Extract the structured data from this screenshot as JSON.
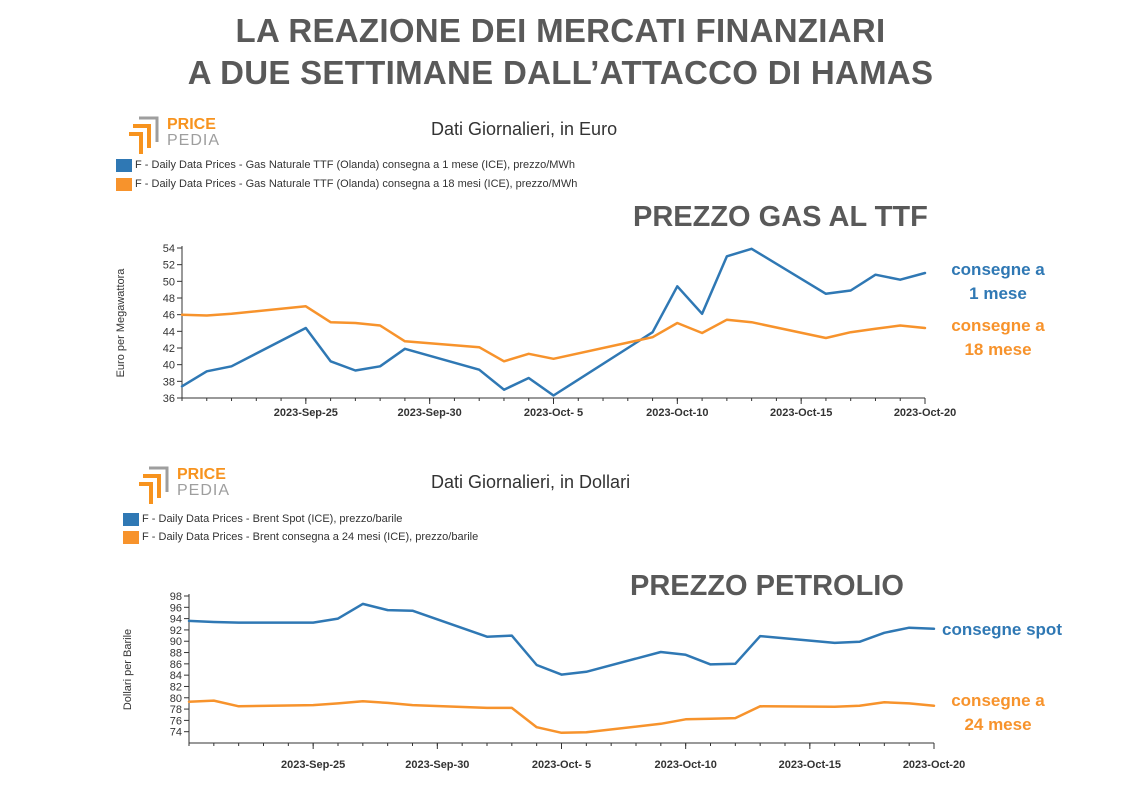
{
  "title_line1": "LA REAZIONE DEI MERCATI FINANZIARI",
  "title_line2": "A DUE SETTIMANE DALL’ATTACCO DI HAMAS",
  "logo": {
    "text_top": "PRICE",
    "text_bottom": "PEDIA",
    "color_orange": "#f7931e",
    "color_gray": "#9e9e9e"
  },
  "colors": {
    "blue": "#2f78b4",
    "orange": "#f7932c",
    "axis": "#333333"
  },
  "chart_data": [
    {
      "type": "line",
      "subtitle": "Dati Giornalieri, in Euro",
      "overlay_title": "PREZZO GAS AL TTF",
      "ylabel": "Euro per Megawattora",
      "ylim": [
        36,
        54
      ],
      "yticks": [
        36,
        38,
        40,
        42,
        44,
        46,
        48,
        50,
        52,
        54
      ],
      "xlim": [
        "2023-Sep-20",
        "2023-Oct-20"
      ],
      "xticks": [
        "2023-Sep-25",
        "2023-Sep-30",
        "2023-Oct- 5",
        "2023-Oct-10",
        "2023-Oct-15",
        "2023-Oct-20"
      ],
      "x_start": "2023-Sep-20",
      "series": [
        {
          "name": "F - Daily Data Prices - Gas Naturale TTF (Olanda) consegna a 1 mese (ICE), prezzo/MWh",
          "annotation": [
            "consegne a",
            "1 mese"
          ],
          "color": "#2f78b4",
          "x": [
            0,
            1,
            2,
            5,
            6,
            7,
            8,
            9,
            12,
            13,
            14,
            15,
            19,
            20,
            21,
            22,
            23,
            26,
            27,
            28,
            29,
            30
          ],
          "values": [
            37.4,
            39.2,
            39.8,
            44.4,
            40.4,
            39.3,
            39.8,
            41.9,
            39.4,
            37.0,
            38.4,
            36.3,
            43.9,
            49.4,
            46.1,
            53.0,
            53.9,
            48.5,
            48.9,
            50.8,
            50.2,
            51.0
          ]
        },
        {
          "name": "F - Daily Data Prices - Gas Naturale TTF (Olanda) consegna a 18 mesi (ICE), prezzo/MWh",
          "annotation": [
            "consegne a",
            "18 mese"
          ],
          "color": "#f7932c",
          "x": [
            0,
            1,
            2,
            5,
            6,
            7,
            8,
            9,
            12,
            13,
            14,
            15,
            19,
            20,
            21,
            22,
            23,
            26,
            27,
            28,
            29,
            30
          ],
          "values": [
            46.0,
            45.9,
            46.1,
            47.0,
            45.1,
            45.0,
            44.7,
            42.8,
            42.1,
            40.4,
            41.3,
            40.7,
            43.3,
            45.0,
            43.8,
            45.4,
            45.1,
            43.2,
            43.9,
            44.3,
            44.7,
            44.4
          ]
        }
      ]
    },
    {
      "type": "line",
      "subtitle": "Dati Giornalieri, in Dollari",
      "overlay_title": "PREZZO PETROLIO",
      "ylabel": "Dollari per Barile",
      "ylim": [
        72,
        98
      ],
      "yticks": [
        74,
        76,
        78,
        80,
        82,
        84,
        86,
        88,
        90,
        92,
        94,
        96,
        98
      ],
      "xlim": [
        "2023-Sep-20",
        "2023-Oct-20"
      ],
      "xticks": [
        "2023-Sep-25",
        "2023-Sep-30",
        "2023-Oct- 5",
        "2023-Oct-10",
        "2023-Oct-15",
        "2023-Oct-20"
      ],
      "x_start": "2023-Sep-20",
      "series": [
        {
          "name": "F - Daily Data Prices - Brent Spot (ICE), prezzo/barile",
          "annotation": [
            "consegne spot"
          ],
          "color": "#2f78b4",
          "x": [
            0,
            1,
            2,
            5,
            6,
            7,
            8,
            9,
            12,
            13,
            14,
            15,
            16,
            19,
            20,
            21,
            22,
            23,
            26,
            27,
            28,
            29,
            30
          ],
          "values": [
            93.6,
            93.4,
            93.3,
            93.3,
            94.0,
            96.6,
            95.5,
            95.4,
            90.8,
            91.0,
            85.8,
            84.1,
            84.6,
            88.1,
            87.6,
            85.9,
            86.0,
            90.9,
            89.7,
            89.9,
            91.5,
            92.4,
            92.2
          ]
        },
        {
          "name": "F - Daily Data Prices - Brent consegna a 24 mesi (ICE), prezzo/barile",
          "annotation": [
            "consegne a",
            "24 mese"
          ],
          "color": "#f7932c",
          "x": [
            0,
            1,
            2,
            5,
            6,
            7,
            8,
            9,
            12,
            13,
            14,
            15,
            16,
            19,
            20,
            21,
            22,
            23,
            26,
            27,
            28,
            29,
            30
          ],
          "values": [
            79.3,
            79.5,
            78.5,
            78.7,
            79.0,
            79.4,
            79.1,
            78.7,
            78.2,
            78.2,
            74.8,
            73.8,
            73.9,
            75.4,
            76.2,
            76.3,
            76.4,
            78.5,
            78.4,
            78.6,
            79.2,
            79.0,
            78.6
          ]
        }
      ]
    }
  ]
}
